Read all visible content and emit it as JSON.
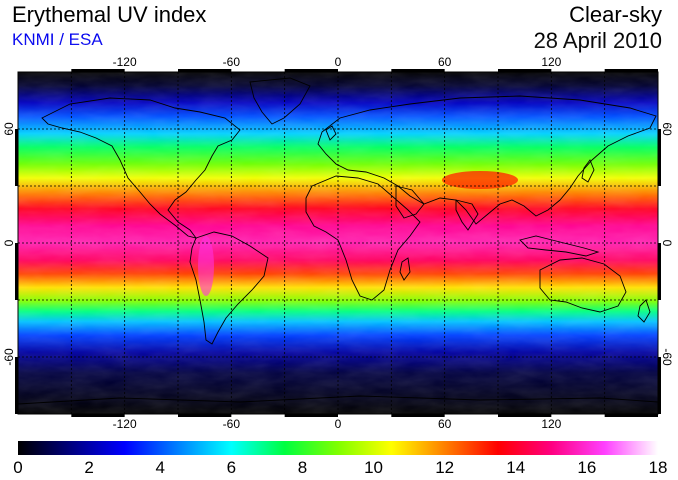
{
  "header": {
    "title": "Erythemal UV index",
    "source": "KNMI / ESA",
    "mode": "Clear-sky",
    "date": "28 April 2010"
  },
  "map": {
    "lon_ticks": [
      -120,
      -60,
      0,
      60,
      120
    ],
    "lat_ticks": [
      60,
      0,
      -60
    ],
    "lon_range": [
      -180,
      180
    ],
    "lat_range": [
      -90,
      90
    ],
    "gridlines": "dotted",
    "coastlines": true
  },
  "colorbar": {
    "min": 0,
    "max": 18,
    "tick_labels": [
      "0",
      "2",
      "4",
      "6",
      "8",
      "10",
      "12",
      "14",
      "16",
      "18"
    ],
    "colors": [
      "#000000",
      "#000080",
      "#0000ff",
      "#0080ff",
      "#00ffff",
      "#00ff40",
      "#80ff00",
      "#ffff00",
      "#ff8000",
      "#ff0000",
      "#ff0080",
      "#ff40ff",
      "#ffffff"
    ]
  }
}
